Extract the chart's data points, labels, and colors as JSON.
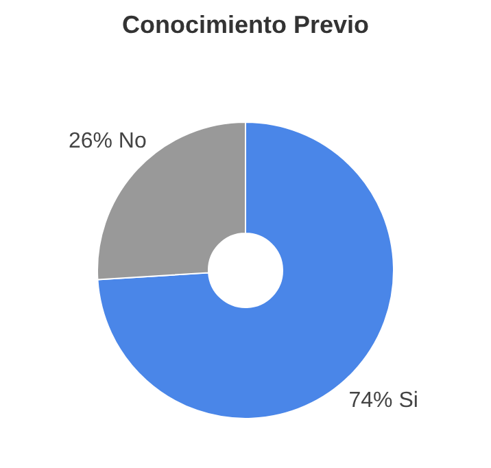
{
  "chart_data": {
    "type": "donut",
    "title": "Conocimiento Previo",
    "categories": [
      "Si",
      "No"
    ],
    "values": [
      74,
      26
    ],
    "colors": [
      "#4a86e8",
      "#999999"
    ],
    "value_labels": [
      "74%",
      "26%"
    ],
    "legend": false
  }
}
